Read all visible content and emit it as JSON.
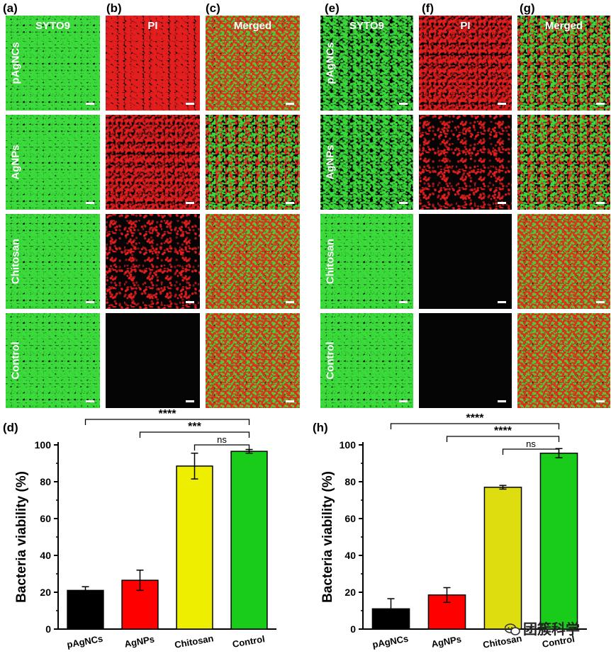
{
  "panel_labels": [
    "(a)",
    "(b)",
    "(c)",
    "(d)",
    "(e)",
    "(f)",
    "(g)",
    "(h)"
  ],
  "micro_left": {
    "columns": [
      "SYTO9",
      "PI",
      "Merged"
    ],
    "rows": [
      "pAgNCs",
      "AgNPs",
      "Chitosan",
      "Control"
    ],
    "column_colors": [
      "green",
      "red",
      "merged"
    ]
  },
  "micro_right": {
    "columns": [
      "SYTO9",
      "PI",
      "Merged"
    ],
    "rows": [
      "pAgNCs",
      "AgNPs",
      "Chitosan",
      "Control"
    ],
    "column_colors": [
      "green",
      "red",
      "merged"
    ]
  },
  "colors": {
    "black_bar": "#000000",
    "red_bar": "#ff0000",
    "yellow_bar_d": "#eeee00",
    "yellow_bar_h": "#dddd10",
    "green_bar": "#19cc19"
  },
  "chart_data": [
    {
      "type": "bar",
      "panel": "(d)",
      "categories": [
        "pAgNCs",
        "AgNPs",
        "Chitosan",
        "Control"
      ],
      "values": [
        21,
        26.5,
        88.5,
        96.5
      ],
      "errors": [
        2,
        5.5,
        7,
        1
      ],
      "bar_colors": [
        "#000000",
        "#ff0000",
        "#eeee00",
        "#19cc19"
      ],
      "ylabel": "Bacteria viability (%)",
      "ylim": [
        0,
        100
      ],
      "yticks": [
        0,
        20,
        40,
        60,
        80,
        100
      ],
      "significance": [
        {
          "from": 0,
          "to": 3,
          "label": "****"
        },
        {
          "from": 1,
          "to": 3,
          "label": "***"
        },
        {
          "from": 2,
          "to": 3,
          "label": "ns"
        }
      ]
    },
    {
      "type": "bar",
      "panel": "(h)",
      "categories": [
        "pAgNCs",
        "AgNPs",
        "Chitosan",
        "Control"
      ],
      "values": [
        11,
        18.5,
        77,
        95.5
      ],
      "errors": [
        5.5,
        4,
        1,
        2.5
      ],
      "bar_colors": [
        "#000000",
        "#ff0000",
        "#dddd10",
        "#19cc19"
      ],
      "ylabel": "Bacteria viability (%)",
      "ylim": [
        0,
        100
      ],
      "yticks": [
        0,
        20,
        40,
        60,
        80,
        100
      ],
      "significance": [
        {
          "from": 0,
          "to": 3,
          "label": "****"
        },
        {
          "from": 1,
          "to": 3,
          "label": "****"
        },
        {
          "from": 2,
          "to": 3,
          "label": "ns"
        }
      ]
    }
  ],
  "watermark": {
    "text": "团簇科学",
    "icon": "wechat-icon"
  }
}
